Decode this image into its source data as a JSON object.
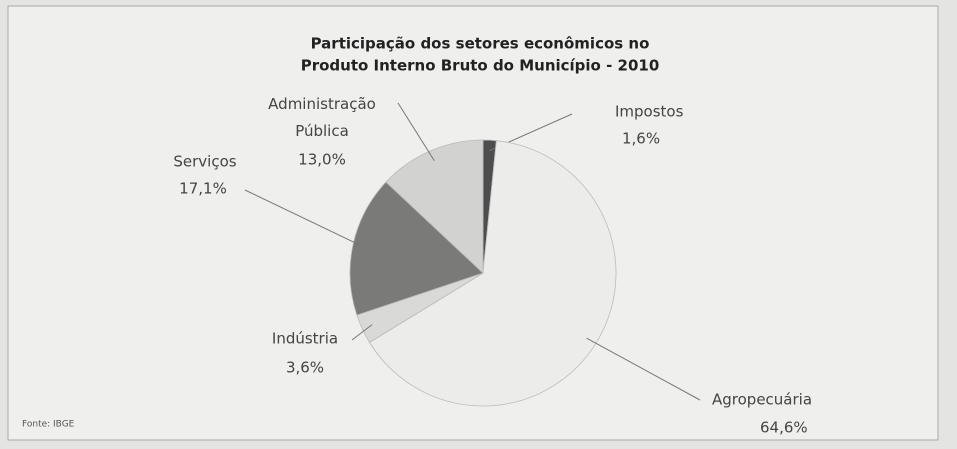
{
  "chart_data": {
    "type": "pie",
    "title": [
      "Participação dos setores econômicos no",
      "Produto Interno Bruto do Município - 2010"
    ],
    "categories": [
      "Impostos",
      "Agropecuária",
      "Indústria",
      "Serviços",
      "Administração Pública"
    ],
    "values": [
      1.6,
      64.6,
      3.6,
      17.1,
      13.0
    ],
    "value_labels": [
      "1,6%",
      "64,6%",
      "3,6%",
      "17,1%",
      "13,0%"
    ],
    "colors": [
      "#4d4d4d",
      "#ececea",
      "#d9d9d7",
      "#7a7a78",
      "#d2d2d0"
    ],
    "source": "Fonte: IBGE"
  }
}
